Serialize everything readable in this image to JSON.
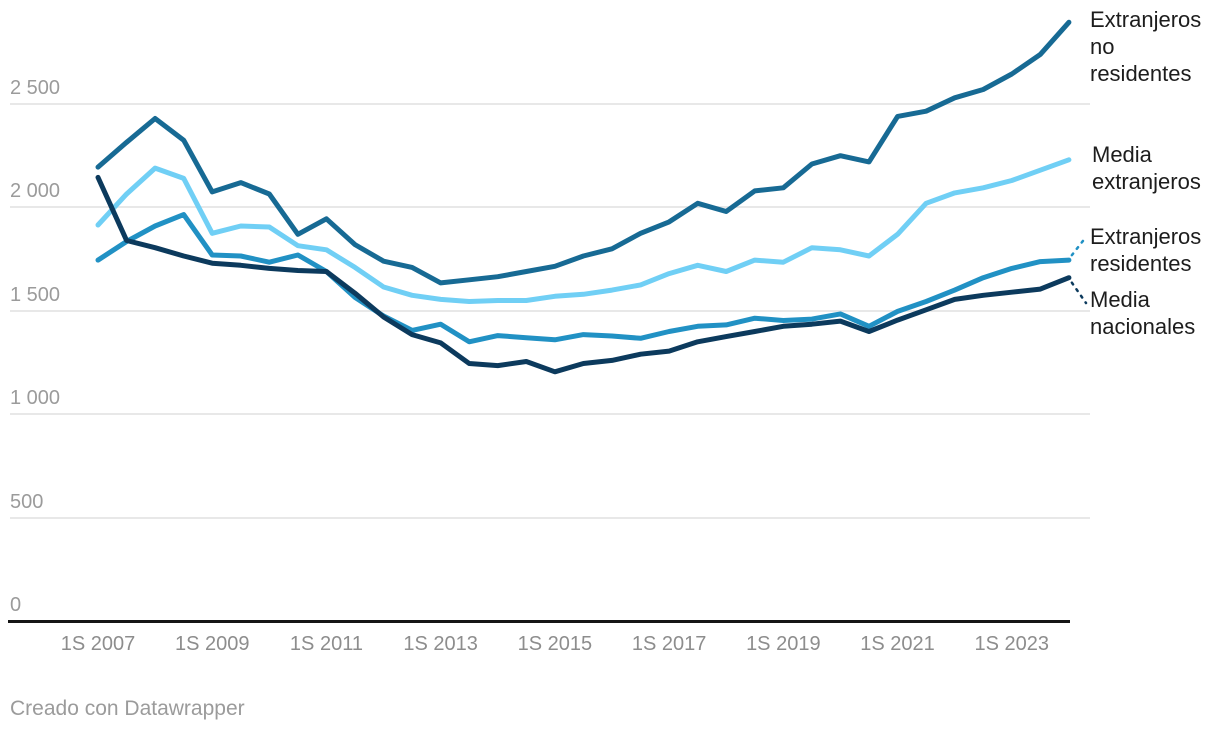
{
  "chart_data": {
    "type": "line",
    "title": "",
    "x_labels": [
      "1S 2007",
      "2S 2007",
      "1S 2008",
      "2S 2008",
      "1S 2009",
      "2S 2009",
      "1S 2010",
      "2S 2010",
      "1S 2011",
      "2S 2011",
      "1S 2012",
      "2S 2012",
      "1S 2013",
      "2S 2013",
      "1S 2014",
      "2S 2014",
      "1S 2015",
      "2S 2015",
      "1S 2016",
      "2S 2016",
      "1S 2017",
      "2S 2017",
      "1S 2018",
      "2S 2018",
      "1S 2019",
      "2S 2019",
      "1S 2020",
      "2S 2020",
      "1S 2021",
      "2S 2021",
      "1S 2022",
      "2S 2022",
      "1S 2023",
      "2S 2023",
      "1S 2024"
    ],
    "x_axis_tick_labels": [
      "1S 2007",
      "1S 2009",
      "1S 2011",
      "1S 2013",
      "1S 2015",
      "1S 2017",
      "1S 2019",
      "1S 2021",
      "1S 2023"
    ],
    "y_ticks": [
      {
        "value": 0,
        "label": "0"
      },
      {
        "value": 500,
        "label": "500"
      },
      {
        "value": 1000,
        "label": "1 000"
      },
      {
        "value": 1500,
        "label": "1 500"
      },
      {
        "value": 2000,
        "label": "2 000"
      },
      {
        "value": 2500,
        "label": "2 500"
      }
    ],
    "ylim": [
      0,
      2960
    ],
    "grid": true,
    "legend_position": "right-end-of-lines",
    "series": [
      {
        "name": "Extranjeros no residentes",
        "color": "#176a94",
        "values": [
          2195,
          2315,
          2430,
          2325,
          2075,
          2120,
          2065,
          1870,
          1945,
          1820,
          1740,
          1710,
          1635,
          1650,
          1665,
          1690,
          1715,
          1765,
          1800,
          1875,
          1930,
          2020,
          1980,
          2080,
          2095,
          2210,
          2250,
          2220,
          2440,
          2465,
          2530,
          2570,
          2645,
          2740,
          2895
        ]
      },
      {
        "name": "Media extranjeros",
        "color": "#70cff5",
        "values": [
          1915,
          2065,
          2190,
          2140,
          1875,
          1910,
          1905,
          1815,
          1795,
          1710,
          1615,
          1575,
          1555,
          1545,
          1550,
          1550,
          1570,
          1580,
          1600,
          1625,
          1680,
          1720,
          1690,
          1745,
          1735,
          1805,
          1795,
          1765,
          1870,
          2020,
          2070,
          2095,
          2130,
          2180,
          2230
        ]
      },
      {
        "name": "Extranjeros residentes",
        "color": "#2191c4",
        "values": [
          1745,
          1835,
          1910,
          1965,
          1770,
          1765,
          1735,
          1770,
          1690,
          1565,
          1475,
          1405,
          1435,
          1350,
          1380,
          1370,
          1360,
          1385,
          1378,
          1367,
          1400,
          1425,
          1432,
          1464,
          1453,
          1460,
          1485,
          1425,
          1497,
          1545,
          1600,
          1660,
          1705,
          1738,
          1745
        ]
      },
      {
        "name": "Media nacionales",
        "color": "#0c3a5d",
        "values": [
          2145,
          1840,
          1805,
          1765,
          1730,
          1720,
          1705,
          1695,
          1690,
          1585,
          1470,
          1385,
          1345,
          1245,
          1235,
          1255,
          1205,
          1245,
          1260,
          1290,
          1305,
          1350,
          1375,
          1400,
          1425,
          1435,
          1450,
          1400,
          1455,
          1505,
          1555,
          1575,
          1590,
          1605,
          1660
        ]
      }
    ]
  },
  "footer": {
    "credit": "Creado con Datawrapper"
  }
}
